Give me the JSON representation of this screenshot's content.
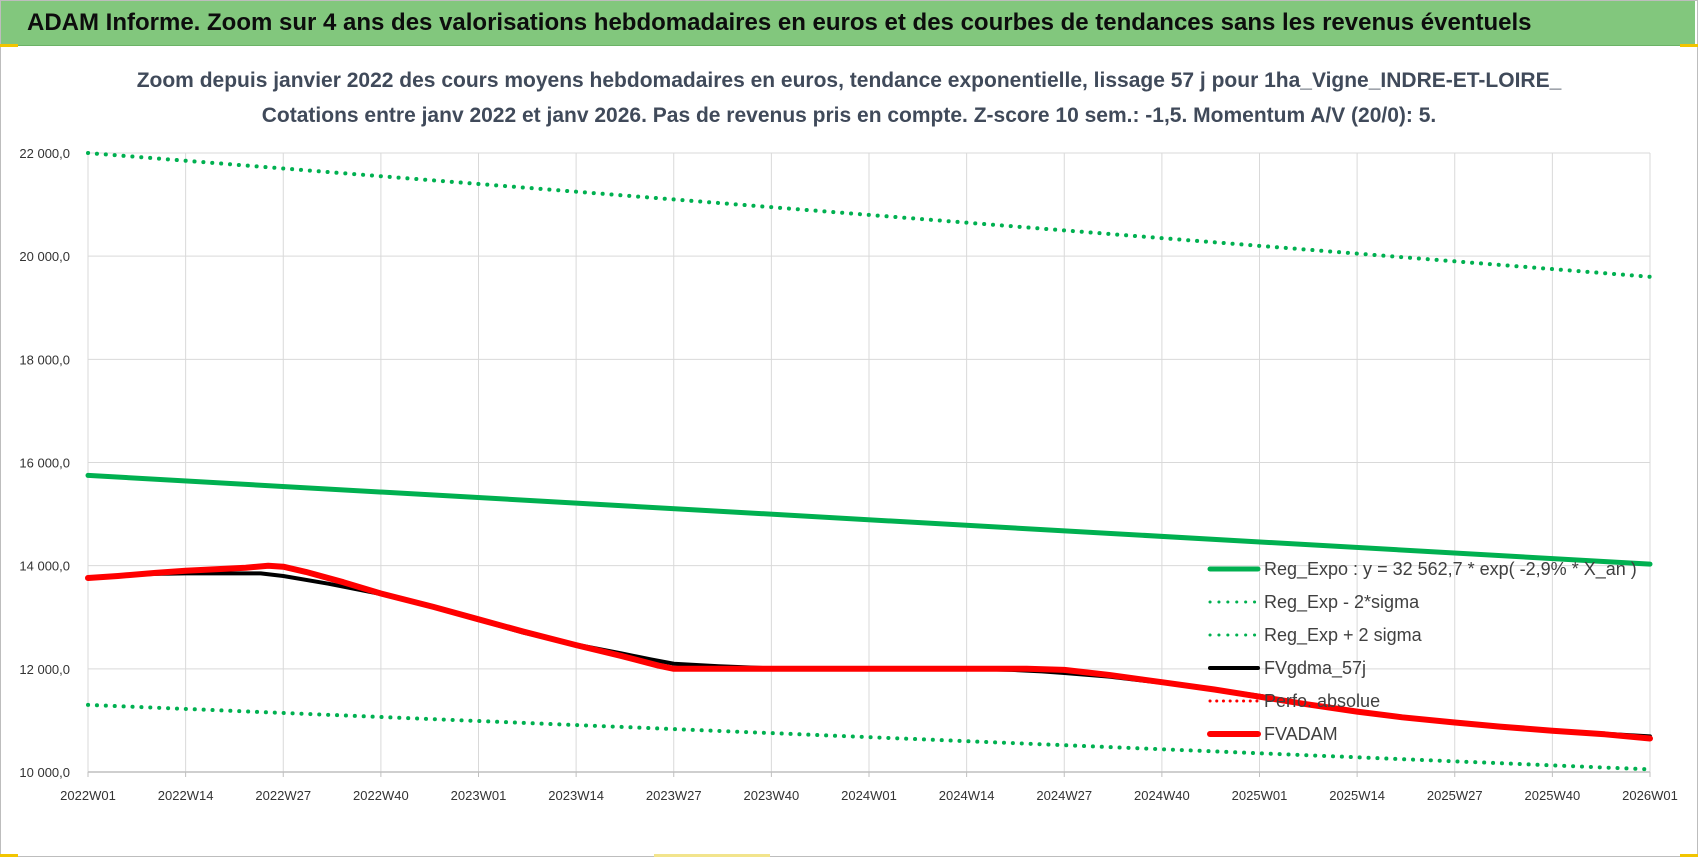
{
  "banner": {
    "title": "ADAM Informe. Zoom sur 4 ans des valorisations hebdomadaires en euros et des courbes de tendances sans les revenus éventuels"
  },
  "chart_data": {
    "type": "line",
    "title": "Zoom depuis janvier 2022 des cours moyens hebdomadaires en euros, tendance exponentielle, lissage 57 j pour 1ha_Vigne_INDRE-ET-LOIRE_",
    "subtitle": "Cotations entre janv 2022 et janv 2026. Pas de revenus pris en compte. Z-score 10 sem.: -1,5. Momentum A/V (20/0): 5.",
    "xlabel": "",
    "ylabel": "",
    "ylim": [
      10000,
      22000
    ],
    "grid": true,
    "legend_position": "right",
    "x_ticks": [
      "2022W01",
      "2022W14",
      "2022W27",
      "2022W40",
      "2023W01",
      "2023W14",
      "2023W27",
      "2023W40",
      "2024W01",
      "2024W14",
      "2024W27",
      "2024W40",
      "2025W01",
      "2025W14",
      "2025W27",
      "2025W40",
      "2026W01"
    ],
    "y_ticks": [
      {
        "value": 10000,
        "label": "10 000,0"
      },
      {
        "value": 12000,
        "label": "12 000,0"
      },
      {
        "value": 14000,
        "label": "14 000,0"
      },
      {
        "value": 16000,
        "label": "16 000,0"
      },
      {
        "value": 18000,
        "label": "18 000,0"
      },
      {
        "value": 20000,
        "label": "20 000,0"
      },
      {
        "value": 22000,
        "label": "22 000,0"
      }
    ],
    "series": [
      {
        "name": "Reg_Expo : y = 32 562,7 * exp( -2,9% * X_an )",
        "color": "#00b050",
        "style": "solid",
        "width": 5,
        "x": [
          "2022W01",
          "2026W01"
        ],
        "y": [
          15750,
          14030
        ]
      },
      {
        "name": "Reg_Exp - 2*sigma",
        "color": "#00b050",
        "style": "dotted",
        "width": 4,
        "x": [
          "2022W01",
          "2026W01"
        ],
        "y": [
          11300,
          10050
        ]
      },
      {
        "name": "Reg_Exp + 2 sigma",
        "color": "#00b050",
        "style": "dotted",
        "width": 4,
        "x": [
          "2022W01",
          "2026W01"
        ],
        "y": [
          22000,
          19600
        ]
      },
      {
        "name": "FVgdma_57j",
        "color": "#000000",
        "style": "solid",
        "width": 4,
        "x": [
          "2022W01",
          "2022W05",
          "2022W10",
          "2022W14",
          "2022W20",
          "2022W24",
          "2022W27",
          "2022W33",
          "2022W40",
          "2022W47",
          "2023W01",
          "2023W07",
          "2023W14",
          "2023W20",
          "2023W24",
          "2023W27",
          "2023W33",
          "2023W40",
          "2024W01",
          "2024W14",
          "2024W20",
          "2024W24",
          "2024W27",
          "2024W33",
          "2024W40",
          "2024W47",
          "2025W01",
          "2025W07",
          "2025W14",
          "2025W20",
          "2025W27",
          "2025W33",
          "2025W40",
          "2025W47",
          "2026W01"
        ],
        "y": [
          13760,
          13810,
          13840,
          13850,
          13850,
          13850,
          13800,
          13650,
          13450,
          13200,
          12950,
          12700,
          12470,
          12300,
          12180,
          12100,
          12050,
          12010,
          12000,
          12000,
          11980,
          11950,
          11920,
          11850,
          11730,
          11600,
          11480,
          11320,
          11180,
          11060,
          10960,
          10880,
          10800,
          10740,
          10690
        ]
      },
      {
        "name": "Perfo. absolue",
        "color": "#ff0000",
        "style": "dotted",
        "width": 3,
        "x": [],
        "y": []
      },
      {
        "name": "FVADAM",
        "color": "#ff0000",
        "style": "solid",
        "width": 6,
        "x": [
          "2022W01",
          "2022W05",
          "2022W10",
          "2022W14",
          "2022W18",
          "2022W22",
          "2022W25",
          "2022W27",
          "2022W30",
          "2022W35",
          "2022W40",
          "2022W47",
          "2023W01",
          "2023W07",
          "2023W14",
          "2023W20",
          "2023W25",
          "2023W27",
          "2023W33",
          "2023W40",
          "2024W01",
          "2024W14",
          "2024W22",
          "2024W27",
          "2024W33",
          "2024W40",
          "2024W47",
          "2025W01",
          "2025W07",
          "2025W14",
          "2025W20",
          "2025W27",
          "2025W33",
          "2025W40",
          "2025W47",
          "2026W01"
        ],
        "y": [
          13760,
          13800,
          13860,
          13900,
          13930,
          13960,
          14000,
          13980,
          13880,
          13680,
          13460,
          13200,
          12960,
          12720,
          12460,
          12250,
          12060,
          12000,
          12000,
          12000,
          12000,
          12000,
          12000,
          11980,
          11880,
          11740,
          11600,
          11460,
          11320,
          11170,
          11060,
          10960,
          10880,
          10800,
          10730,
          10650
        ]
      }
    ]
  }
}
